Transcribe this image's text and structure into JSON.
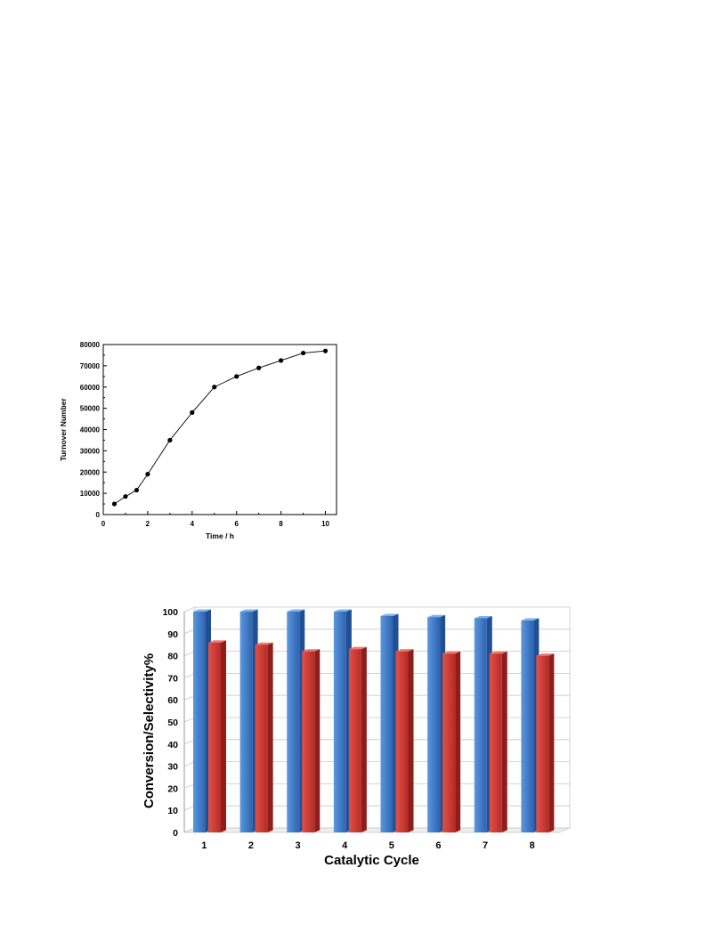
{
  "chart_data": [
    {
      "type": "line",
      "title": "",
      "xlabel": "Time / h",
      "ylabel": "Turnover Number",
      "xlim": [
        0,
        10.5
      ],
      "ylim": [
        0,
        80000
      ],
      "x_ticks": [
        "0",
        "2",
        "4",
        "6",
        "8",
        "10"
      ],
      "y_ticks": [
        "0",
        "10000",
        "20000",
        "30000",
        "40000",
        "50000",
        "60000",
        "70000",
        "80000"
      ],
      "grid": false,
      "series": [
        {
          "x": [
            0.5,
            1,
            1.5,
            2,
            3,
            4,
            5,
            6,
            7,
            8,
            9,
            10
          ],
          "y": [
            5000,
            8500,
            11500,
            19000,
            35000,
            48000,
            60000,
            65000,
            69000,
            72500,
            76000,
            77000
          ],
          "marker": "circle",
          "color": "#000000"
        }
      ]
    },
    {
      "type": "bar",
      "title": "",
      "xlabel": "Catalytic Cycle",
      "ylabel": "Conversion/Selectivity%",
      "categories": [
        "1",
        "2",
        "3",
        "4",
        "5",
        "6",
        "7",
        "8"
      ],
      "ylim": [
        0,
        100
      ],
      "y_ticks": [
        "0",
        "10",
        "20",
        "30",
        "40",
        "50",
        "60",
        "70",
        "80",
        "90",
        "100"
      ],
      "grid": true,
      "style": "3d",
      "series": [
        {
          "values": [
            100,
            100,
            100,
            100,
            98,
            97.5,
            97,
            96
          ],
          "color": "#3a78c8"
        },
        {
          "values": [
            86,
            85,
            82,
            83,
            82,
            81,
            81,
            80
          ],
          "color": "#d43a34"
        }
      ]
    }
  ]
}
